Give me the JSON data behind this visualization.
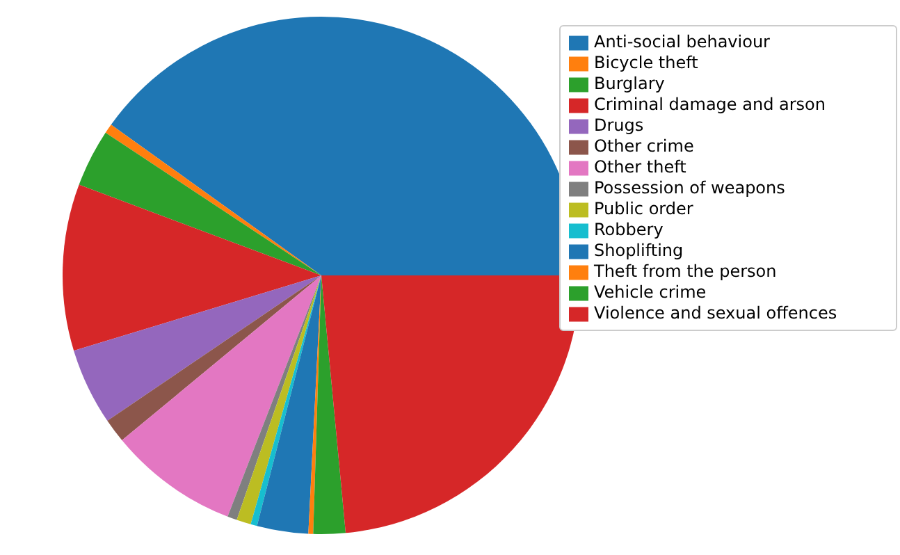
{
  "chart_data": {
    "type": "pie",
    "categories": [
      "Anti-social behaviour",
      "Bicycle theft",
      "Burglary",
      "Criminal damage and arson",
      "Drugs",
      "Other crime",
      "Other theft",
      "Possession of weapons",
      "Public order",
      "Robbery",
      "Shoplifting",
      "Theft from the person",
      "Vehicle crime",
      "Violence and sexual offences"
    ],
    "values": [
      40.1,
      0.6,
      3.6,
      10.4,
      4.8,
      1.5,
      8.1,
      0.6,
      0.9,
      0.4,
      3.2,
      0.3,
      2,
      23.5
    ],
    "colors": [
      "#1f77b4",
      "#ff7f0e",
      "#2ca02c",
      "#d62728",
      "#9467bd",
      "#8c564b",
      "#e377c2",
      "#7f7f7f",
      "#bcbd22",
      "#17becf",
      "#1f77b4",
      "#ff7f0e",
      "#2ca02c",
      "#d62728"
    ],
    "legend": "top right"
  }
}
